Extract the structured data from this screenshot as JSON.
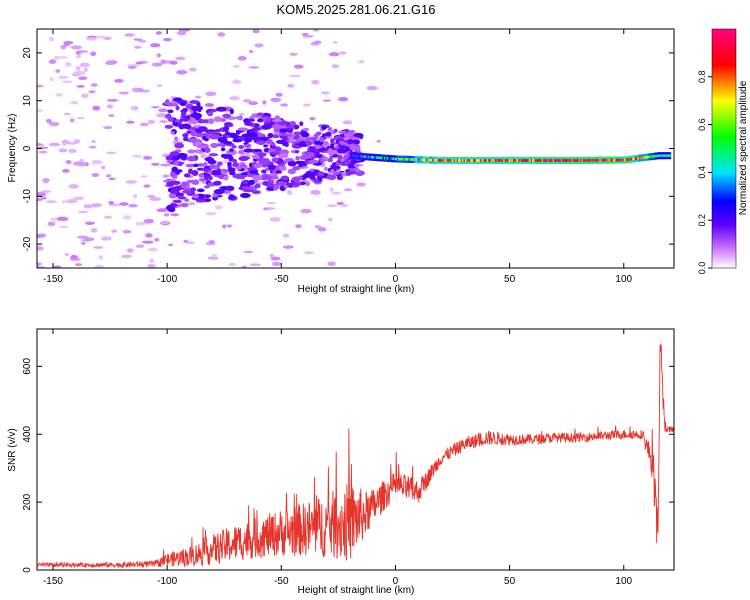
{
  "figure_title": "KOM5.2025.281.06.21.G16",
  "colors": {
    "snr_line": "#e8332b",
    "axis": "#000000"
  },
  "chart_data": [
    {
      "type": "heatmap",
      "title": "KOM5.2025.281.06.21.G16",
      "xlabel": "Height of straight line (km)",
      "ylabel": "Frequency (Hz)",
      "xlim": [
        -157,
        122
      ],
      "ylim": [
        -25,
        25
      ],
      "x_ticks": [
        -150,
        -100,
        -50,
        0,
        50,
        100
      ],
      "y_ticks": [
        -20,
        -10,
        0,
        10,
        20
      ],
      "colorbar": {
        "label": "Normalized spectral amplitude",
        "range": [
          0,
          1
        ],
        "ticks": [
          "0.0",
          "0.2",
          "0.4",
          "0.6",
          "0.8"
        ],
        "colors": [
          "#ffffff",
          "#b000ff",
          "#0000ff",
          "#00e5ff",
          "#00ff00",
          "#ffff00",
          "#ff0000",
          "#ff0080"
        ]
      },
      "description_series": {
        "ridge_x": [
          -20,
          0,
          20,
          40,
          60,
          80,
          100,
          115
        ],
        "ridge_frequency": [
          -1.5,
          -2.2,
          -2.5,
          -2.5,
          -2.5,
          -2.5,
          -2.4,
          -1.5
        ],
        "ridge_amplitude": [
          0.3,
          0.6,
          0.85,
          0.85,
          0.9,
          0.95,
          0.95,
          0.5
        ]
      }
    },
    {
      "type": "line",
      "xlabel": "Height of straight line (km)",
      "ylabel": "SNR (v/v)",
      "xlim": [
        -157,
        122
      ],
      "ylim": [
        0,
        710
      ],
      "x_ticks": [
        -150,
        -100,
        -50,
        0,
        50,
        100
      ],
      "y_ticks": [
        0,
        200,
        400,
        600
      ],
      "series": [
        {
          "name": "SNR",
          "x": [
            -157,
            -140,
            -120,
            -105,
            -100,
            -90,
            -80,
            -70,
            -60,
            -50,
            -40,
            -30,
            -20,
            -12,
            -5,
            0,
            5,
            10,
            15,
            20,
            30,
            40,
            50,
            60,
            70,
            80,
            90,
            100,
            108,
            112,
            114,
            115,
            116,
            118,
            120,
            122
          ],
          "y": [
            15,
            15,
            15,
            18,
            30,
            40,
            60,
            80,
            95,
            110,
            120,
            130,
            140,
            170,
            220,
            250,
            240,
            230,
            280,
            330,
            370,
            390,
            385,
            385,
            390,
            390,
            395,
            400,
            400,
            330,
            200,
            90,
            650,
            420,
            415,
            410
          ],
          "noise_amplitude": [
            6,
            6,
            8,
            10,
            20,
            30,
            45,
            55,
            60,
            70,
            80,
            95,
            120,
            60,
            45,
            40,
            40,
            35,
            25,
            20,
            20,
            22,
            18,
            15,
            15,
            14,
            14,
            14,
            14,
            40,
            120,
            20,
            100,
            20,
            12,
            10
          ]
        }
      ]
    }
  ]
}
